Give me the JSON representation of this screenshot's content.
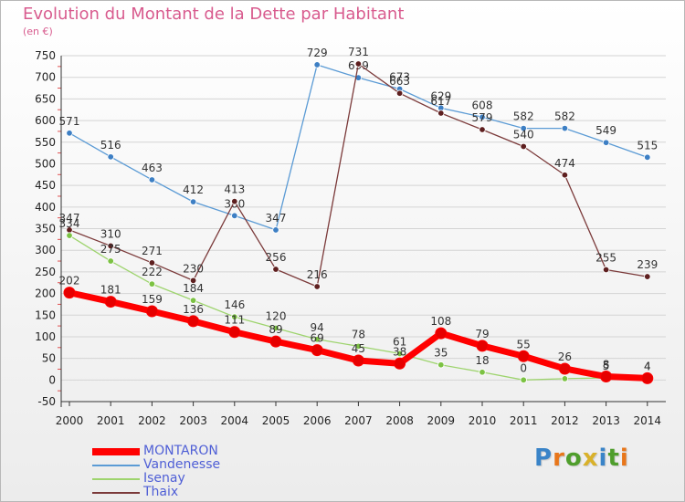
{
  "title": "Evolution du Montant de la Dette par Habitant",
  "subtitle": "(en €)",
  "logo_text": "Proxiti",
  "logo_colors": [
    "#3a84c8",
    "#e8761a",
    "#4f9e2c",
    "#d9b12a",
    "#3a84c8",
    "#4f9e2c",
    "#e8761a"
  ],
  "colors": {
    "title": "#d85b8e",
    "legend_text": "#4f5fd6",
    "gridline": "#d4d4d4",
    "axis": "#333333"
  },
  "chart_data": {
    "type": "line",
    "title": "Evolution du Montant de la Dette par Habitant",
    "ylabel": "(en €)",
    "xlabel": "",
    "x": [
      "2000",
      "2001",
      "2002",
      "2003",
      "2004",
      "2005",
      "2006",
      "2007",
      "2008",
      "2009",
      "2010",
      "2011",
      "2012",
      "2013",
      "2014"
    ],
    "ylim": [
      -50,
      750
    ],
    "yticks": [
      -50,
      0,
      50,
      100,
      150,
      200,
      250,
      300,
      350,
      400,
      450,
      500,
      550,
      600,
      650,
      700,
      750
    ],
    "grid": true,
    "legend_position": "bottom-left",
    "series": [
      {
        "name": "Vandenesse",
        "color": "#5b9bd5",
        "marker": "#3d7fc4",
        "values": [
          571,
          516,
          463,
          412,
          380,
          347,
          729,
          699,
          673,
          629,
          608,
          582,
          582,
          549,
          515
        ],
        "labels": [
          "571",
          "516",
          "463",
          "412",
          "380",
          "347",
          "729",
          "699",
          "673",
          "629",
          "608",
          "582",
          "582",
          "549",
          "515"
        ]
      },
      {
        "name": "Thaix",
        "color": "#7b3a3a",
        "marker": "#5e1f1f",
        "values": [
          347,
          310,
          271,
          230,
          413,
          256,
          216,
          731,
          663,
          617,
          579,
          540,
          474,
          255,
          239
        ],
        "labels": [
          "347",
          "310",
          "271",
          "230",
          "413",
          "256",
          "216",
          "731",
          "663",
          "617",
          "579",
          "540",
          "474",
          "255",
          "239"
        ]
      },
      {
        "name": "Isenay",
        "color": "#9ed46e",
        "marker": "#7cc243",
        "values": [
          334,
          275,
          222,
          184,
          146,
          120,
          94,
          78,
          61,
          35,
          18,
          0,
          3,
          5,
          4
        ],
        "labels": [
          "334",
          "275",
          "222",
          "184",
          "146",
          "120",
          "94",
          "78",
          "61",
          "35",
          "18",
          "0",
          "",
          "5",
          "4"
        ]
      },
      {
        "name": "MONTARON",
        "color": "#ff0000",
        "marker": "#e60000",
        "values": [
          202,
          181,
          159,
          136,
          111,
          89,
          69,
          45,
          38,
          108,
          79,
          55,
          26,
          8,
          4
        ],
        "labels": [
          "202",
          "181",
          "159",
          "136",
          "111",
          "89",
          "69",
          "45",
          "38",
          "108",
          "79",
          "55",
          "26",
          "8",
          "4"
        ]
      }
    ],
    "legend_order": [
      "MONTARON",
      "Vandenesse",
      "Isenay",
      "Thaix"
    ]
  }
}
